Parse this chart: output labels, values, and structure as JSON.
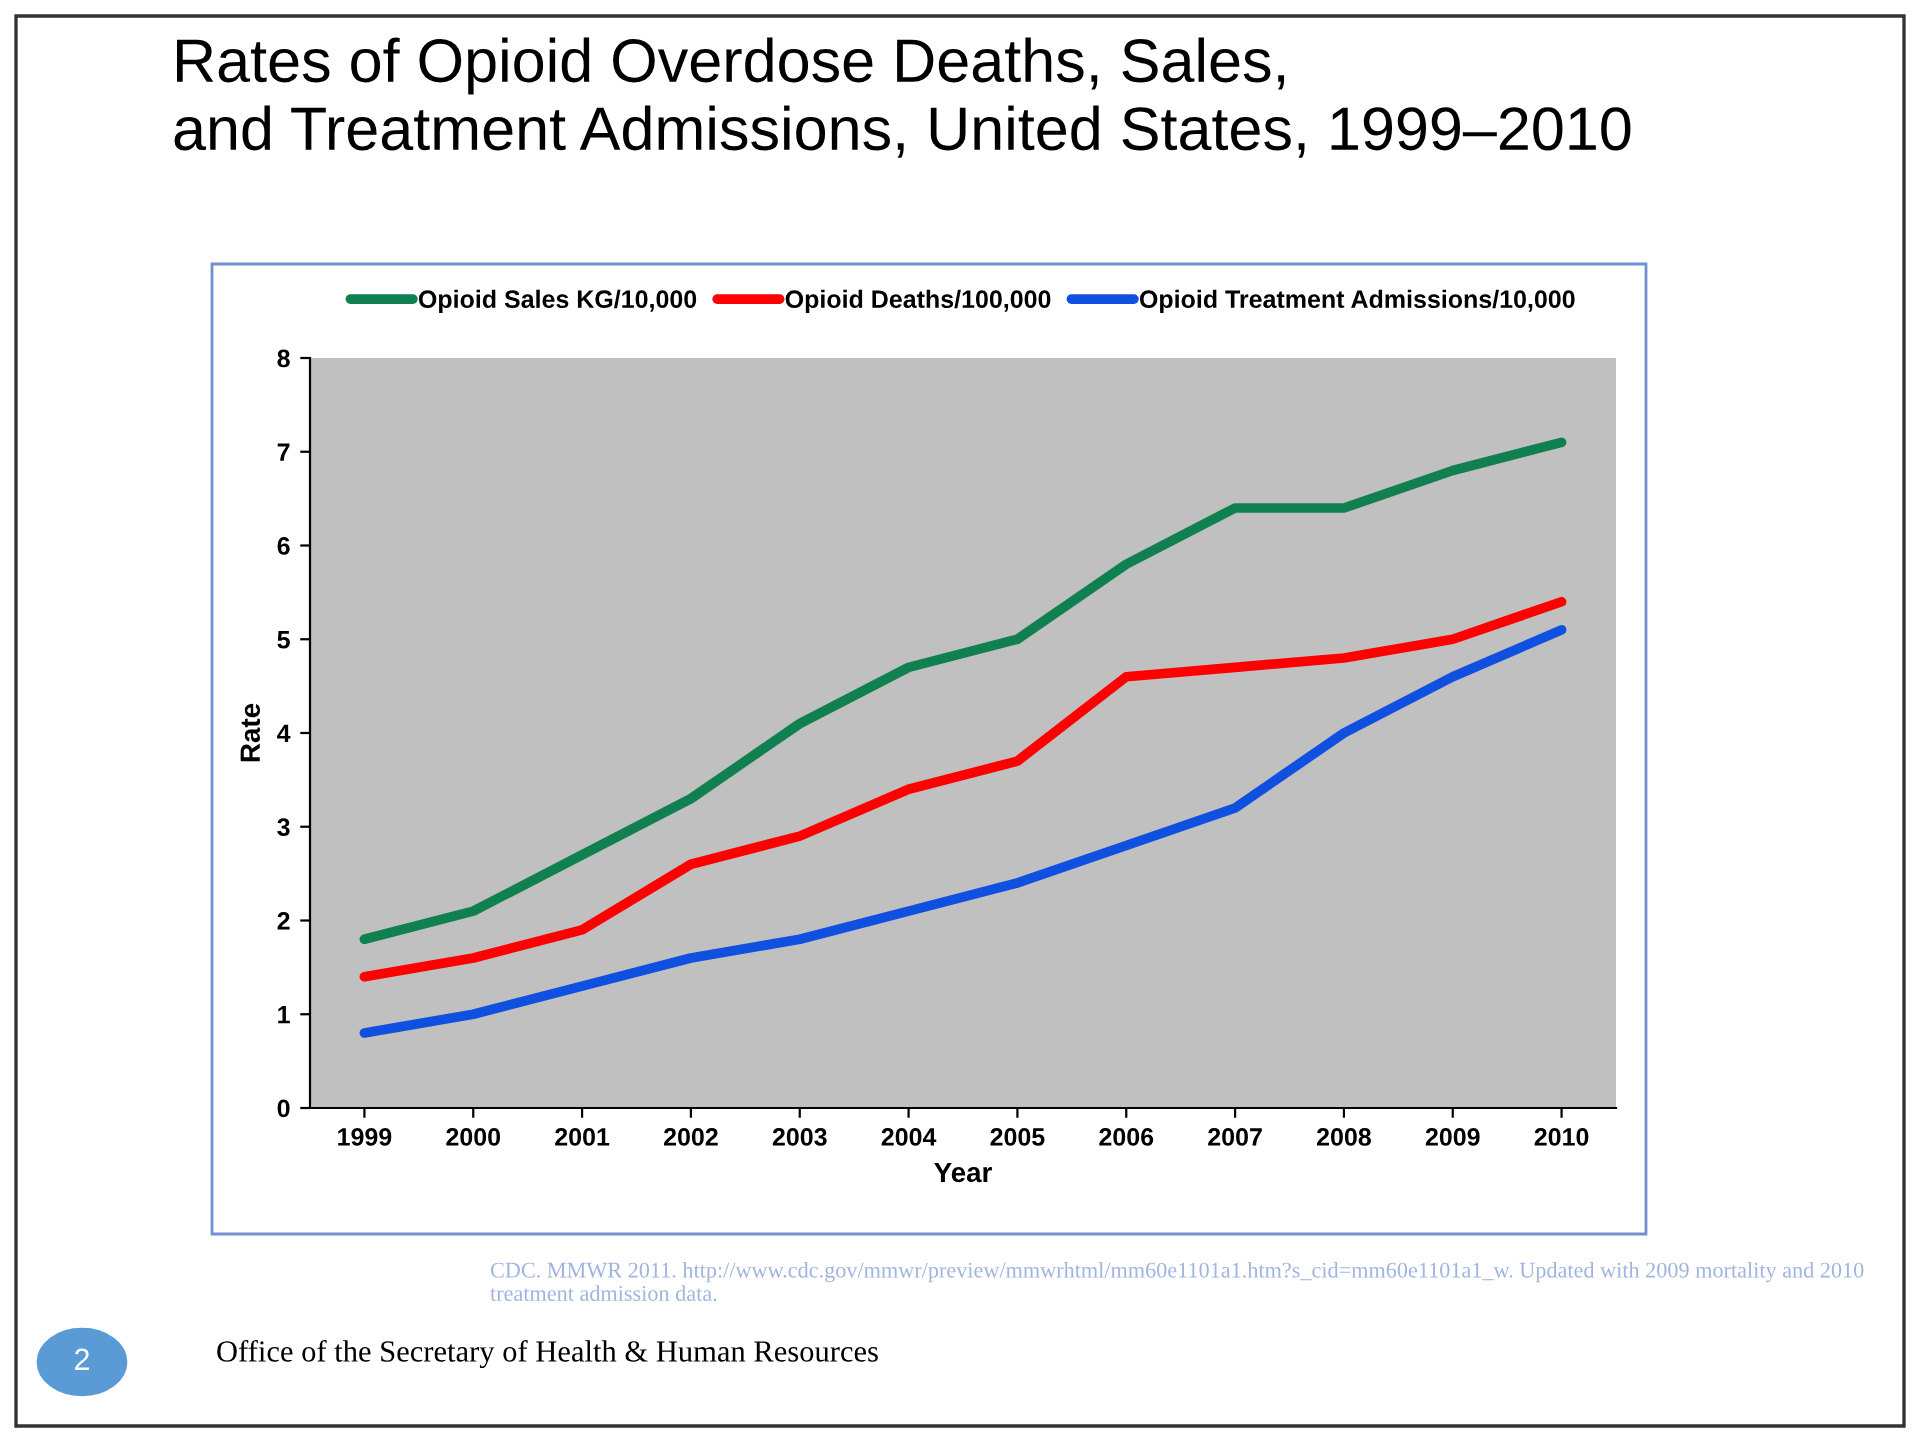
{
  "chart_data": {
    "type": "line",
    "title": "Rates of Opioid Overdose Deaths, Sales,\nand Treatment Admissions, United States, 1999–2010",
    "xlabel": "Year",
    "ylabel": "Rate",
    "categories": [
      "1999",
      "2000",
      "2001",
      "2002",
      "2003",
      "2004",
      "2005",
      "2006",
      "2007",
      "2008",
      "2009",
      "2010"
    ],
    "series": [
      {
        "name": "Opioid Sales KG/10,000",
        "color": "#108050",
        "values": [
          1.8,
          2.1,
          2.7,
          3.3,
          4.1,
          4.7,
          5.0,
          5.8,
          6.4,
          6.4,
          6.8,
          7.1
        ]
      },
      {
        "name": "Opioid Deaths/100,000",
        "color": "#ff0000",
        "values": [
          1.4,
          1.6,
          1.9,
          2.6,
          2.9,
          3.4,
          3.7,
          4.6,
          4.7,
          4.8,
          5.0,
          5.4
        ]
      },
      {
        "name": "Opioid Treatment Admissions/10,000",
        "color": "#1050e0",
        "values": [
          0.8,
          1.0,
          1.3,
          1.6,
          1.8,
          2.1,
          2.4,
          2.8,
          3.2,
          4.0,
          4.6,
          5.1
        ]
      }
    ],
    "ylim": [
      0,
      8
    ],
    "yticks": [
      0,
      1,
      2,
      3,
      4,
      5,
      6,
      7,
      8
    ],
    "grid": false,
    "legend": "top",
    "marker": "none",
    "line_style": "solid",
    "annotations": [
      "CDC. MMWR 2011. http://www.cdc.gov/mmwr/preview/mmwrhtml/mm60e1101a1.htm?s_cid=mm60e1101a1_w. Updated with 2009 mortality and 2010 treatment admission data.",
      "Office of the Secretary of Health & Human Resources",
      "2"
    ]
  }
}
